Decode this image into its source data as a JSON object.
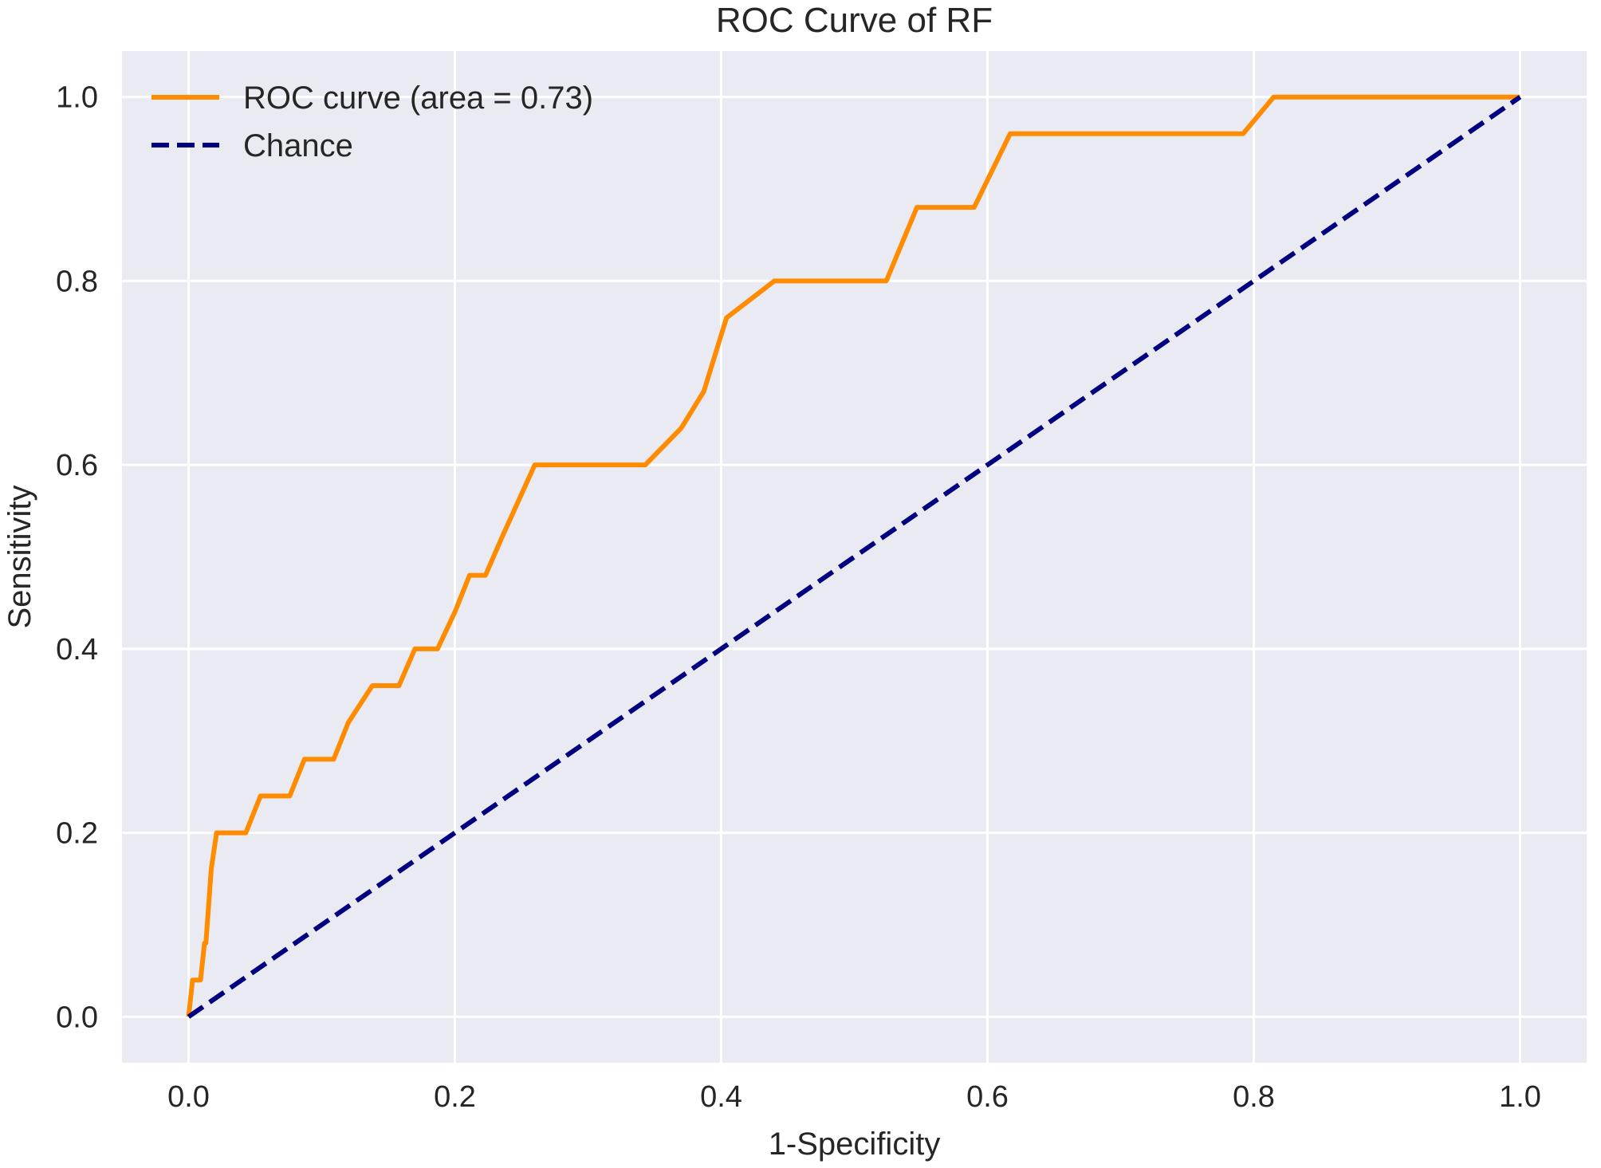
{
  "chart_data": {
    "type": "line",
    "title": "ROC Curve of RF",
    "xlabel": "1-Specificity",
    "ylabel": "Sensitivity",
    "xlim": [
      -0.05,
      1.05
    ],
    "ylim": [
      -0.05,
      1.05
    ],
    "xticks": [
      0.0,
      0.2,
      0.4,
      0.6,
      0.8,
      1.0
    ],
    "xtick_labels": [
      "0.0",
      "0.2",
      "0.4",
      "0.6",
      "0.8",
      "1.0"
    ],
    "yticks": [
      0.0,
      0.2,
      0.4,
      0.6,
      0.8,
      1.0
    ],
    "ytick_labels": [
      "0.0",
      "0.2",
      "0.4",
      "0.6",
      "0.8",
      "1.0"
    ],
    "grid": true,
    "legend_position": "top-left",
    "series": [
      {
        "name": "ROC curve (area = 0.73)",
        "color": "#FF8C00",
        "style": "solid",
        "x": [
          0.0,
          0.003,
          0.009,
          0.012,
          0.013,
          0.015,
          0.017,
          0.021,
          0.043,
          0.054,
          0.076,
          0.087,
          0.109,
          0.12,
          0.138,
          0.158,
          0.17,
          0.187,
          0.2,
          0.211,
          0.223,
          0.235,
          0.26,
          0.343,
          0.37,
          0.387,
          0.404,
          0.44,
          0.524,
          0.547,
          0.59,
          0.617,
          0.792,
          0.815,
          1.0
        ],
        "y": [
          0.0,
          0.04,
          0.04,
          0.08,
          0.08,
          0.12,
          0.16,
          0.2,
          0.2,
          0.24,
          0.24,
          0.28,
          0.28,
          0.32,
          0.36,
          0.36,
          0.4,
          0.4,
          0.44,
          0.48,
          0.48,
          0.52,
          0.6,
          0.6,
          0.64,
          0.68,
          0.76,
          0.8,
          0.8,
          0.88,
          0.88,
          0.96,
          0.96,
          1.0,
          1.0
        ]
      },
      {
        "name": "Chance",
        "color": "#000080",
        "style": "dashed",
        "x": [
          0.0,
          1.0
        ],
        "y": [
          0.0,
          1.0
        ]
      }
    ]
  },
  "colors": {
    "plot_background": "#EAEAF2",
    "grid": "#FFFFFF",
    "text": "#262626"
  }
}
